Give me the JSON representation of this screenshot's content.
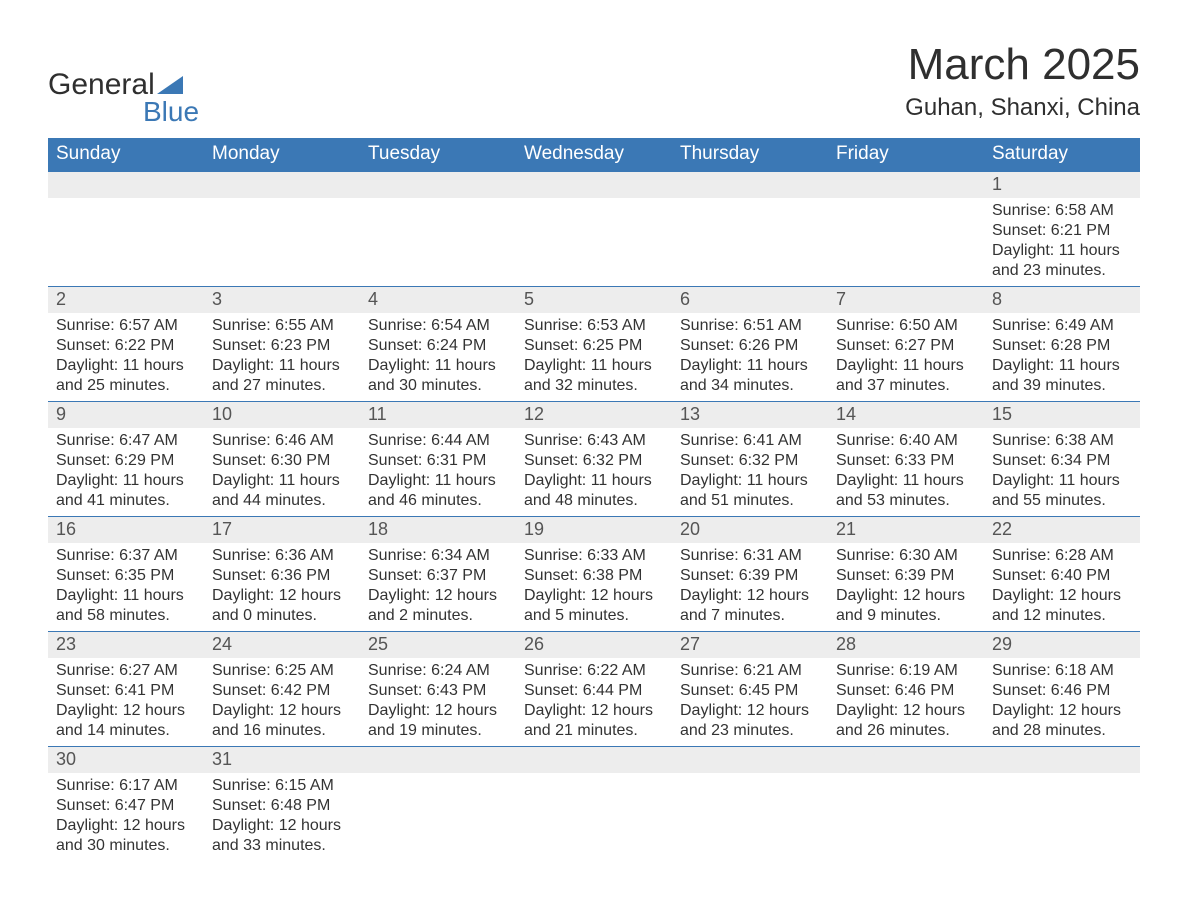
{
  "logo": {
    "word1": "General",
    "word2": "Blue"
  },
  "title": "March 2025",
  "location": "Guhan, Shanxi, China",
  "colors": {
    "header_bg": "#3b78b5",
    "header_text": "#ffffff",
    "daynum_bg": "#ededed",
    "daynum_text": "#555555",
    "body_text": "#333333",
    "rule": "#3b78b5",
    "logo_blue": "#3b78b5"
  },
  "weekdays": [
    "Sunday",
    "Monday",
    "Tuesday",
    "Wednesday",
    "Thursday",
    "Friday",
    "Saturday"
  ],
  "weeks": [
    [
      null,
      null,
      null,
      null,
      null,
      null,
      {
        "day": "1",
        "sunrise": "Sunrise: 6:58 AM",
        "sunset": "Sunset: 6:21 PM",
        "daylight": "Daylight: 11 hours and 23 minutes."
      }
    ],
    [
      {
        "day": "2",
        "sunrise": "Sunrise: 6:57 AM",
        "sunset": "Sunset: 6:22 PM",
        "daylight": "Daylight: 11 hours and 25 minutes."
      },
      {
        "day": "3",
        "sunrise": "Sunrise: 6:55 AM",
        "sunset": "Sunset: 6:23 PM",
        "daylight": "Daylight: 11 hours and 27 minutes."
      },
      {
        "day": "4",
        "sunrise": "Sunrise: 6:54 AM",
        "sunset": "Sunset: 6:24 PM",
        "daylight": "Daylight: 11 hours and 30 minutes."
      },
      {
        "day": "5",
        "sunrise": "Sunrise: 6:53 AM",
        "sunset": "Sunset: 6:25 PM",
        "daylight": "Daylight: 11 hours and 32 minutes."
      },
      {
        "day": "6",
        "sunrise": "Sunrise: 6:51 AM",
        "sunset": "Sunset: 6:26 PM",
        "daylight": "Daylight: 11 hours and 34 minutes."
      },
      {
        "day": "7",
        "sunrise": "Sunrise: 6:50 AM",
        "sunset": "Sunset: 6:27 PM",
        "daylight": "Daylight: 11 hours and 37 minutes."
      },
      {
        "day": "8",
        "sunrise": "Sunrise: 6:49 AM",
        "sunset": "Sunset: 6:28 PM",
        "daylight": "Daylight: 11 hours and 39 minutes."
      }
    ],
    [
      {
        "day": "9",
        "sunrise": "Sunrise: 6:47 AM",
        "sunset": "Sunset: 6:29 PM",
        "daylight": "Daylight: 11 hours and 41 minutes."
      },
      {
        "day": "10",
        "sunrise": "Sunrise: 6:46 AM",
        "sunset": "Sunset: 6:30 PM",
        "daylight": "Daylight: 11 hours and 44 minutes."
      },
      {
        "day": "11",
        "sunrise": "Sunrise: 6:44 AM",
        "sunset": "Sunset: 6:31 PM",
        "daylight": "Daylight: 11 hours and 46 minutes."
      },
      {
        "day": "12",
        "sunrise": "Sunrise: 6:43 AM",
        "sunset": "Sunset: 6:32 PM",
        "daylight": "Daylight: 11 hours and 48 minutes."
      },
      {
        "day": "13",
        "sunrise": "Sunrise: 6:41 AM",
        "sunset": "Sunset: 6:32 PM",
        "daylight": "Daylight: 11 hours and 51 minutes."
      },
      {
        "day": "14",
        "sunrise": "Sunrise: 6:40 AM",
        "sunset": "Sunset: 6:33 PM",
        "daylight": "Daylight: 11 hours and 53 minutes."
      },
      {
        "day": "15",
        "sunrise": "Sunrise: 6:38 AM",
        "sunset": "Sunset: 6:34 PM",
        "daylight": "Daylight: 11 hours and 55 minutes."
      }
    ],
    [
      {
        "day": "16",
        "sunrise": "Sunrise: 6:37 AM",
        "sunset": "Sunset: 6:35 PM",
        "daylight": "Daylight: 11 hours and 58 minutes."
      },
      {
        "day": "17",
        "sunrise": "Sunrise: 6:36 AM",
        "sunset": "Sunset: 6:36 PM",
        "daylight": "Daylight: 12 hours and 0 minutes."
      },
      {
        "day": "18",
        "sunrise": "Sunrise: 6:34 AM",
        "sunset": "Sunset: 6:37 PM",
        "daylight": "Daylight: 12 hours and 2 minutes."
      },
      {
        "day": "19",
        "sunrise": "Sunrise: 6:33 AM",
        "sunset": "Sunset: 6:38 PM",
        "daylight": "Daylight: 12 hours and 5 minutes."
      },
      {
        "day": "20",
        "sunrise": "Sunrise: 6:31 AM",
        "sunset": "Sunset: 6:39 PM",
        "daylight": "Daylight: 12 hours and 7 minutes."
      },
      {
        "day": "21",
        "sunrise": "Sunrise: 6:30 AM",
        "sunset": "Sunset: 6:39 PM",
        "daylight": "Daylight: 12 hours and 9 minutes."
      },
      {
        "day": "22",
        "sunrise": "Sunrise: 6:28 AM",
        "sunset": "Sunset: 6:40 PM",
        "daylight": "Daylight: 12 hours and 12 minutes."
      }
    ],
    [
      {
        "day": "23",
        "sunrise": "Sunrise: 6:27 AM",
        "sunset": "Sunset: 6:41 PM",
        "daylight": "Daylight: 12 hours and 14 minutes."
      },
      {
        "day": "24",
        "sunrise": "Sunrise: 6:25 AM",
        "sunset": "Sunset: 6:42 PM",
        "daylight": "Daylight: 12 hours and 16 minutes."
      },
      {
        "day": "25",
        "sunrise": "Sunrise: 6:24 AM",
        "sunset": "Sunset: 6:43 PM",
        "daylight": "Daylight: 12 hours and 19 minutes."
      },
      {
        "day": "26",
        "sunrise": "Sunrise: 6:22 AM",
        "sunset": "Sunset: 6:44 PM",
        "daylight": "Daylight: 12 hours and 21 minutes."
      },
      {
        "day": "27",
        "sunrise": "Sunrise: 6:21 AM",
        "sunset": "Sunset: 6:45 PM",
        "daylight": "Daylight: 12 hours and 23 minutes."
      },
      {
        "day": "28",
        "sunrise": "Sunrise: 6:19 AM",
        "sunset": "Sunset: 6:46 PM",
        "daylight": "Daylight: 12 hours and 26 minutes."
      },
      {
        "day": "29",
        "sunrise": "Sunrise: 6:18 AM",
        "sunset": "Sunset: 6:46 PM",
        "daylight": "Daylight: 12 hours and 28 minutes."
      }
    ],
    [
      {
        "day": "30",
        "sunrise": "Sunrise: 6:17 AM",
        "sunset": "Sunset: 6:47 PM",
        "daylight": "Daylight: 12 hours and 30 minutes."
      },
      {
        "day": "31",
        "sunrise": "Sunrise: 6:15 AM",
        "sunset": "Sunset: 6:48 PM",
        "daylight": "Daylight: 12 hours and 33 minutes."
      },
      null,
      null,
      null,
      null,
      null
    ]
  ]
}
